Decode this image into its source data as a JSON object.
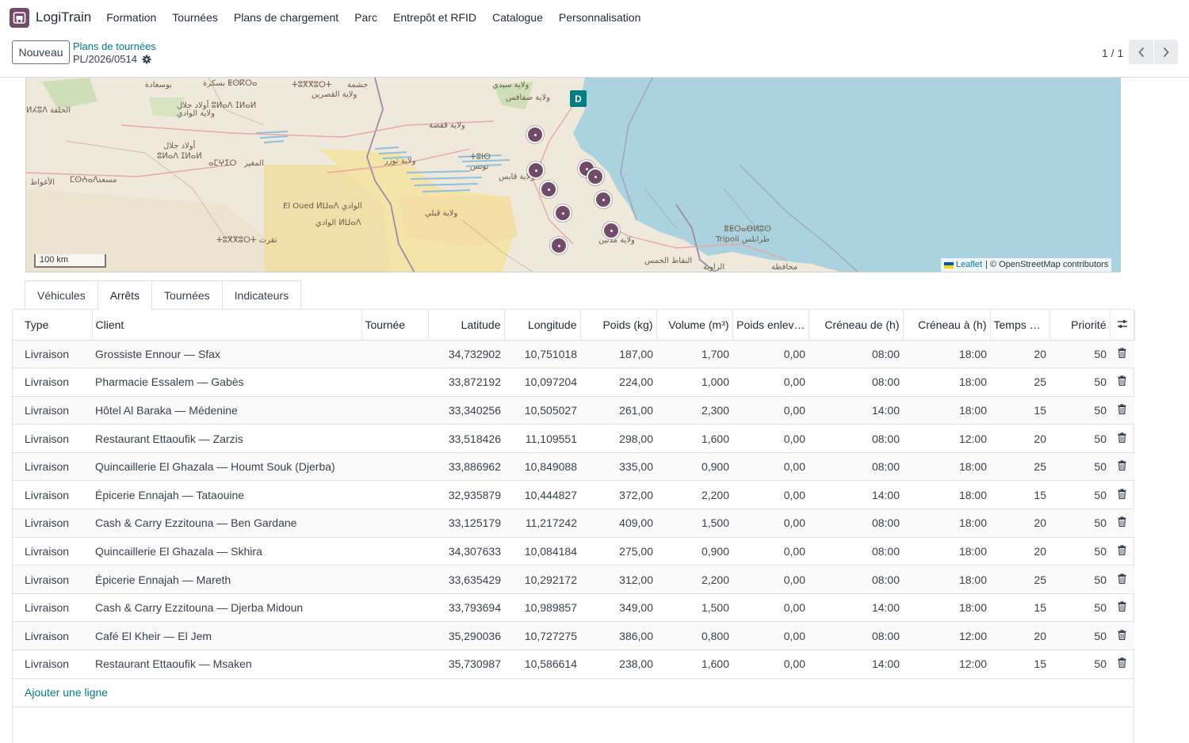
{
  "app": {
    "name": "LogiTrain",
    "logo_icon": "truck-icon",
    "brand_color": "#714b67",
    "accent_color": "#017e84"
  },
  "nav": [
    "Formation",
    "Tournées",
    "Plans de chargement",
    "Parc",
    "Entrepôt et RFID",
    "Catalogue",
    "Personnalisation"
  ],
  "control": {
    "new_button": "Nouveau",
    "breadcrumb": "Plans de tournées",
    "record": "PL/2026/0514",
    "pager": "1 / 1"
  },
  "map": {
    "depot_label": "D",
    "scale": "100 km",
    "attribution_link": "Leaflet",
    "attribution_text": "| © OpenStreetMap contributors",
    "labels": [
      "ولاية سيدي",
      "ولاية صفاقس",
      "بسكرة ⵟⵙⴽⵔⴰ",
      "ولاية القصرين",
      "ⵜⵓⴳⴳⵓⵔⵜ",
      "جشمة",
      "ولاية قفصة",
      "ⵜⵓⵏⵙ",
      "تونس",
      "ولاية قابس",
      "ولاية توزر",
      "ولاية قبلي",
      "El Oued ⵍⵡⴰⴷ الوادي",
      "الوادي ⵍⵡⴰⴷ",
      "ولاية مدنين",
      "ⴻⵟⵔⴰⴱⵍⵓⵙ",
      "Tripoli طرابلس",
      "النقاط الخمس",
      "الزاوية",
      "محافظة",
      "أولاد جلال",
      "ⵓⵍⴰⴷ ⵊⵍⴰⵍ",
      "ولاية الوادي",
      "الأغواط",
      "مسعد",
      "ⵜⵓⴳⴳⵓⵔⵜ تقرت",
      "ⴰⵎⵖⵉⵔ",
      "المغير",
      "ⵍⵃⵓⴷ",
      "الحلفة",
      "ⵎⵙⵄⴰⴷ",
      "أولاد جلال ⵓⵍⴰⴷ ⵊⵍⴰⵍ",
      "بوسعادة"
    ]
  },
  "tabs": [
    "Véhicules",
    "Arrêts",
    "Tournées",
    "Indicateurs"
  ],
  "active_tab": "Arrêts",
  "table": {
    "columns": [
      "Type",
      "Client",
      "Tournée",
      "Latitude",
      "Longitude",
      "Poids (kg)",
      "Volume (m³)",
      "Poids enlev…",
      "Créneau de (h)",
      "Créneau à (h)",
      "Temps d…",
      "Priorité"
    ],
    "settings_icon": "column-settings-icon",
    "delete_icon": "trash-icon",
    "rows": [
      [
        "Livraison",
        "Grossiste Ennour — Sfax",
        "",
        "34,732902",
        "10,751018",
        "187,00",
        "1,700",
        "0,00",
        "08:00",
        "18:00",
        "20",
        "50"
      ],
      [
        "Livraison",
        "Pharmacie Essalem — Gabès",
        "",
        "33,872192",
        "10,097204",
        "224,00",
        "1,000",
        "0,00",
        "08:00",
        "18:00",
        "25",
        "50"
      ],
      [
        "Livraison",
        "Hôtel Al Baraka — Médenine",
        "",
        "33,340256",
        "10,505027",
        "261,00",
        "2,300",
        "0,00",
        "14:00",
        "18:00",
        "15",
        "50"
      ],
      [
        "Livraison",
        "Restaurant Ettaoufik — Zarzis",
        "",
        "33,518426",
        "11,109551",
        "298,00",
        "1,600",
        "0,00",
        "08:00",
        "12:00",
        "20",
        "50"
      ],
      [
        "Livraison",
        "Quincaillerie El Ghazala — Houmt Souk (Djerba)",
        "",
        "33,886962",
        "10,849088",
        "335,00",
        "0,900",
        "0,00",
        "08:00",
        "18:00",
        "25",
        "50"
      ],
      [
        "Livraison",
        "Épicerie Ennajah — Tataouine",
        "",
        "32,935879",
        "10,444827",
        "372,00",
        "2,200",
        "0,00",
        "14:00",
        "18:00",
        "15",
        "50"
      ],
      [
        "Livraison",
        "Cash & Carry Ezzitouna — Ben Gardane",
        "",
        "33,125179",
        "11,217242",
        "409,00",
        "1,500",
        "0,00",
        "08:00",
        "18:00",
        "20",
        "50"
      ],
      [
        "Livraison",
        "Quincaillerie El Ghazala — Skhira",
        "",
        "34,307633",
        "10,084184",
        "275,00",
        "0,900",
        "0,00",
        "08:00",
        "18:00",
        "20",
        "50"
      ],
      [
        "Livraison",
        "Épicerie Ennajah — Mareth",
        "",
        "33,635429",
        "10,292172",
        "312,00",
        "2,200",
        "0,00",
        "08:00",
        "18:00",
        "25",
        "50"
      ],
      [
        "Livraison",
        "Cash & Carry Ezzitouna — Djerba Midoun",
        "",
        "33,793694",
        "10,989857",
        "349,00",
        "1,500",
        "0,00",
        "14:00",
        "18:00",
        "15",
        "50"
      ],
      [
        "Livraison",
        "Café El Kheir — El Jem",
        "",
        "35,290036",
        "10,727275",
        "386,00",
        "0,800",
        "0,00",
        "08:00",
        "12:00",
        "20",
        "50"
      ],
      [
        "Livraison",
        "Restaurant Ettaoufik — Msaken",
        "",
        "35,730987",
        "10,586614",
        "238,00",
        "1,600",
        "0,00",
        "14:00",
        "12:00",
        "15",
        "50"
      ]
    ],
    "add_line": "Ajouter une ligne"
  }
}
